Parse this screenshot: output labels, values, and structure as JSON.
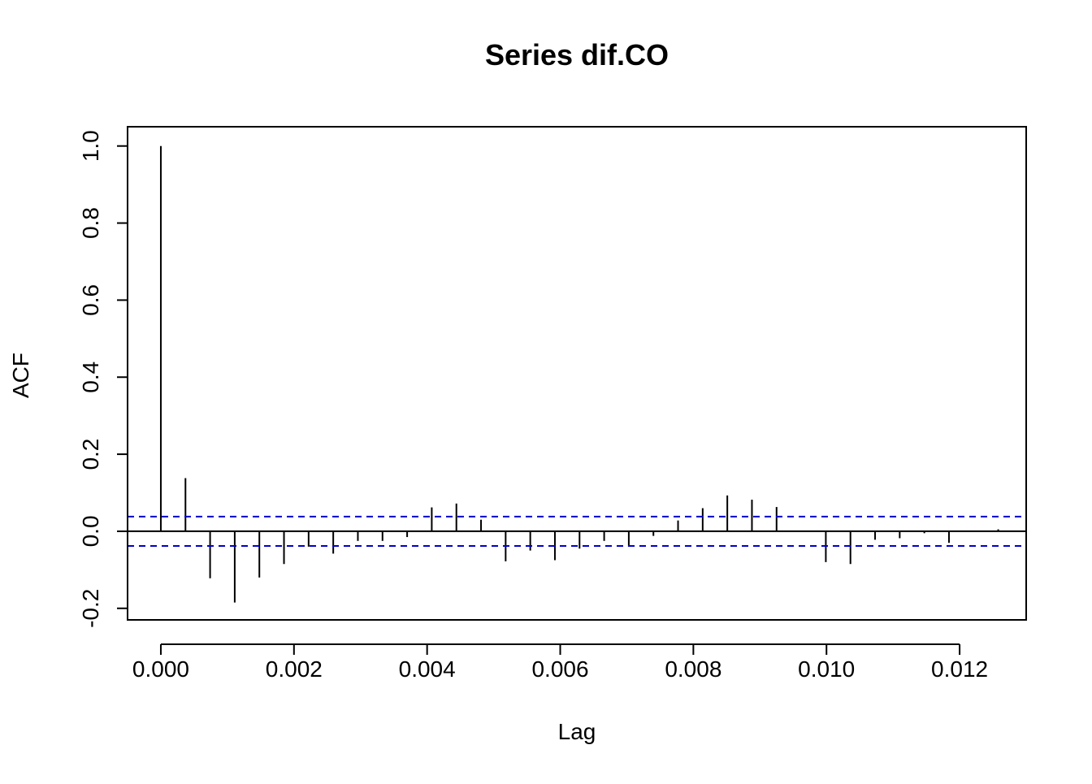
{
  "chart_data": {
    "type": "bar",
    "title": "Series  dif.CO",
    "xlabel": "Lag",
    "ylabel": "ACF",
    "xlim": [
      -0.0005,
      0.013
    ],
    "ylim": [
      -0.23,
      1.05
    ],
    "x_ticks": [
      0.0,
      0.002,
      0.004,
      0.006,
      0.008,
      0.01,
      0.012
    ],
    "x_tick_labels": [
      "0.000",
      "0.002",
      "0.004",
      "0.006",
      "0.008",
      "0.010",
      "0.012"
    ],
    "y_ticks": [
      -0.2,
      0.0,
      0.2,
      0.4,
      0.6,
      0.8,
      1.0
    ],
    "y_tick_labels": [
      "-0.2",
      "0.0",
      "0.2",
      "0.4",
      "0.6",
      "0.8",
      "1.0"
    ],
    "grid": false,
    "lag_step": 0.00037,
    "x": [
      0.0,
      0.00037,
      0.00074,
      0.00111,
      0.00148,
      0.00185,
      0.00222,
      0.00259,
      0.00296,
      0.00333,
      0.0037,
      0.00407,
      0.00444,
      0.00481,
      0.00518,
      0.00555,
      0.00592,
      0.00629,
      0.00666,
      0.00703,
      0.0074,
      0.00777,
      0.00814,
      0.00851,
      0.00888,
      0.00925,
      0.00962,
      0.00999,
      0.01036,
      0.01073,
      0.0111,
      0.01147,
      0.01184,
      0.01221,
      0.01258
    ],
    "values": [
      1.0,
      0.138,
      -0.122,
      -0.185,
      -0.12,
      -0.085,
      -0.04,
      -0.058,
      -0.025,
      -0.025,
      -0.015,
      0.062,
      0.072,
      0.03,
      -0.078,
      -0.05,
      -0.075,
      -0.045,
      -0.025,
      -0.04,
      -0.012,
      0.028,
      0.06,
      0.093,
      0.082,
      0.063,
      0.0,
      -0.08,
      -0.085,
      -0.022,
      -0.018,
      -0.005,
      -0.03,
      0.0,
      0.005
    ],
    "confidence_band": 0.038,
    "colors": {
      "bars": "#000000",
      "zero_line": "#000000",
      "confidence_band": "#0000CD"
    }
  }
}
